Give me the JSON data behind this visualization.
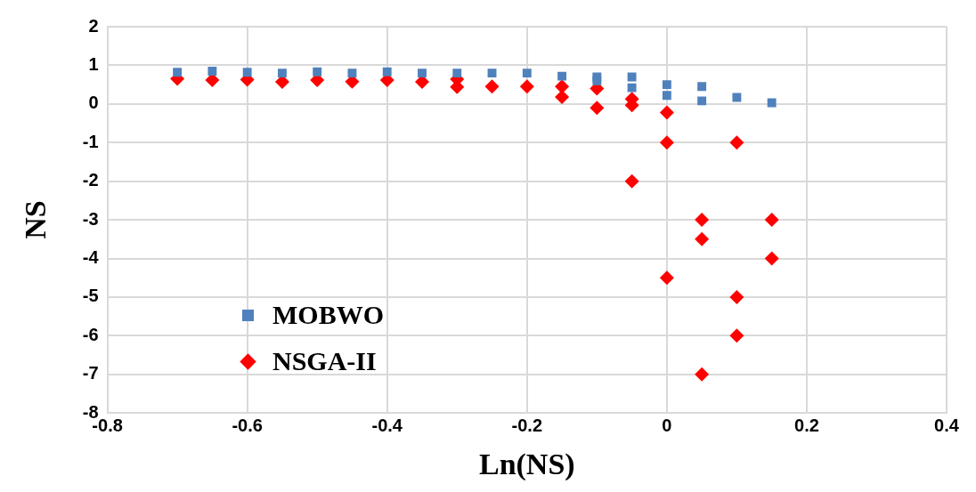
{
  "chart_data": {
    "type": "scatter",
    "xlabel": "Ln(NS)",
    "ylabel": "NS",
    "xlim": [
      -0.8,
      0.4
    ],
    "xticks": [
      -0.8,
      -0.6,
      -0.4,
      -0.2,
      0,
      0.2,
      0.4
    ],
    "ylim": [
      -8,
      2
    ],
    "yticks": [
      -8,
      -7,
      -6,
      -5,
      -4,
      -3,
      -2,
      -1,
      0,
      1,
      2
    ],
    "grid": true,
    "legend": "bottom left",
    "series": [
      {
        "name": "MOBWO",
        "color": "#4f81bd",
        "marker": "square",
        "x": [
          -0.7,
          -0.65,
          -0.6,
          -0.55,
          -0.5,
          -0.45,
          -0.4,
          -0.35,
          -0.3,
          -0.25,
          -0.2,
          -0.15,
          -0.1,
          -0.1,
          -0.05,
          -0.05,
          0,
          0,
          0.05,
          0.05,
          0.1,
          0.15
        ],
        "values": [
          0.82,
          0.85,
          0.82,
          0.8,
          0.83,
          0.8,
          0.83,
          0.8,
          0.8,
          0.8,
          0.8,
          0.72,
          0.7,
          0.6,
          0.7,
          0.42,
          0.5,
          0.22,
          0.45,
          0.08,
          0.17,
          0.03
        ]
      },
      {
        "name": "NSGA-II",
        "color": "#ff0000",
        "marker": "diamond",
        "x": [
          -0.7,
          -0.65,
          -0.6,
          -0.55,
          -0.5,
          -0.45,
          -0.4,
          -0.35,
          -0.3,
          -0.3,
          -0.25,
          -0.2,
          -0.15,
          -0.15,
          -0.1,
          -0.1,
          -0.05,
          -0.05,
          -0.05,
          0,
          0,
          0,
          0.05,
          0.05,
          0.05,
          0.1,
          0.1,
          0.1,
          0.15,
          0.15
        ],
        "values": [
          0.65,
          0.62,
          0.63,
          0.57,
          0.62,
          0.58,
          0.62,
          0.57,
          0.64,
          0.44,
          0.45,
          0.45,
          0.45,
          0.18,
          0.4,
          -0.1,
          0.13,
          -0.03,
          -2,
          -0.22,
          -1,
          -4.5,
          -3,
          -3.5,
          -7,
          -1,
          -5,
          -6,
          -3,
          -4
        ]
      }
    ]
  }
}
